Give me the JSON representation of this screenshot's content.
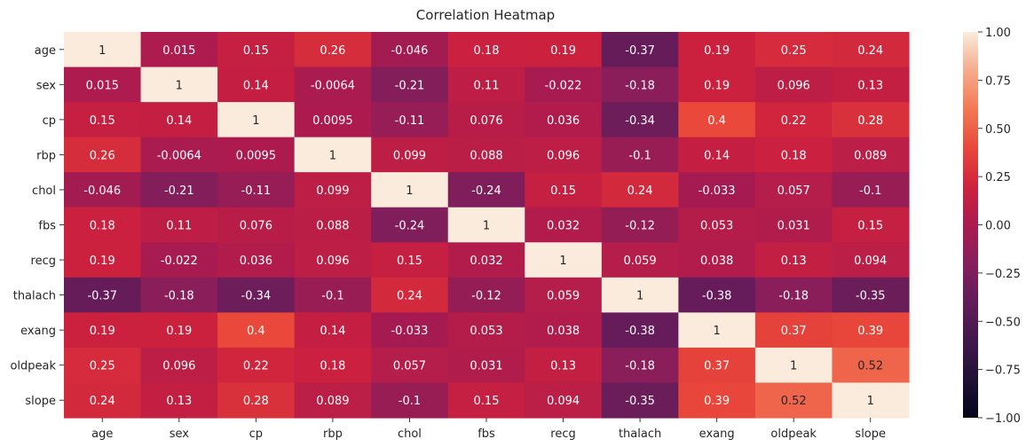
{
  "chart_data": {
    "type": "heatmap",
    "title": "Correlation Heatmap",
    "xlabel": "",
    "ylabel": "",
    "x": [
      "age",
      "sex",
      "cp",
      "rbp",
      "chol",
      "fbs",
      "recg",
      "thalach",
      "exang",
      "oldpeak",
      "slope"
    ],
    "y": [
      "age",
      "sex",
      "cp",
      "rbp",
      "chol",
      "fbs",
      "recg",
      "thalach",
      "exang",
      "oldpeak",
      "slope"
    ],
    "values": [
      [
        1,
        0.015,
        0.15,
        0.26,
        -0.046,
        0.18,
        0.19,
        -0.37,
        0.19,
        0.25,
        0.24
      ],
      [
        0.015,
        1,
        0.14,
        -0.0064,
        -0.21,
        0.11,
        -0.022,
        -0.18,
        0.19,
        0.096,
        0.13
      ],
      [
        0.15,
        0.14,
        1,
        0.0095,
        -0.11,
        0.076,
        0.036,
        -0.34,
        0.4,
        0.22,
        0.28
      ],
      [
        0.26,
        -0.0064,
        0.0095,
        1,
        0.099,
        0.088,
        0.096,
        -0.1,
        0.14,
        0.18,
        0.089
      ],
      [
        -0.046,
        -0.21,
        -0.11,
        0.099,
        1,
        -0.24,
        0.15,
        0.24,
        -0.033,
        0.057,
        -0.1
      ],
      [
        0.18,
        0.11,
        0.076,
        0.088,
        -0.24,
        1,
        0.032,
        -0.12,
        0.053,
        0.031,
        0.15
      ],
      [
        0.19,
        -0.022,
        0.036,
        0.096,
        0.15,
        0.032,
        1,
        0.059,
        0.038,
        0.13,
        0.094
      ],
      [
        -0.37,
        -0.18,
        -0.34,
        -0.1,
        0.24,
        -0.12,
        0.059,
        1,
        -0.38,
        -0.18,
        -0.35
      ],
      [
        0.19,
        0.19,
        0.4,
        0.14,
        -0.033,
        0.053,
        0.038,
        -0.38,
        1,
        0.37,
        0.39
      ],
      [
        0.25,
        0.096,
        0.22,
        0.18,
        0.057,
        0.031,
        0.13,
        -0.18,
        0.37,
        1,
        0.52
      ],
      [
        0.24,
        0.13,
        0.28,
        0.089,
        -0.1,
        0.15,
        0.094,
        -0.35,
        0.39,
        0.52,
        1
      ]
    ],
    "vmin": -1,
    "vmax": 1,
    "colormap": "rocket",
    "colorbar_ticks": [
      "1.00",
      "0.75",
      "0.50",
      "0.25",
      "0.00",
      "−0.25",
      "−0.50",
      "−0.75",
      "−1.00"
    ],
    "colorbar_tick_values": [
      1,
      0.75,
      0.5,
      0.25,
      0,
      -0.25,
      -0.5,
      -0.75,
      -1
    ],
    "annotation_color_light": "#ffffff",
    "annotation_color_dark": "#262626",
    "grid": false,
    "legend": "colorbar-right"
  }
}
